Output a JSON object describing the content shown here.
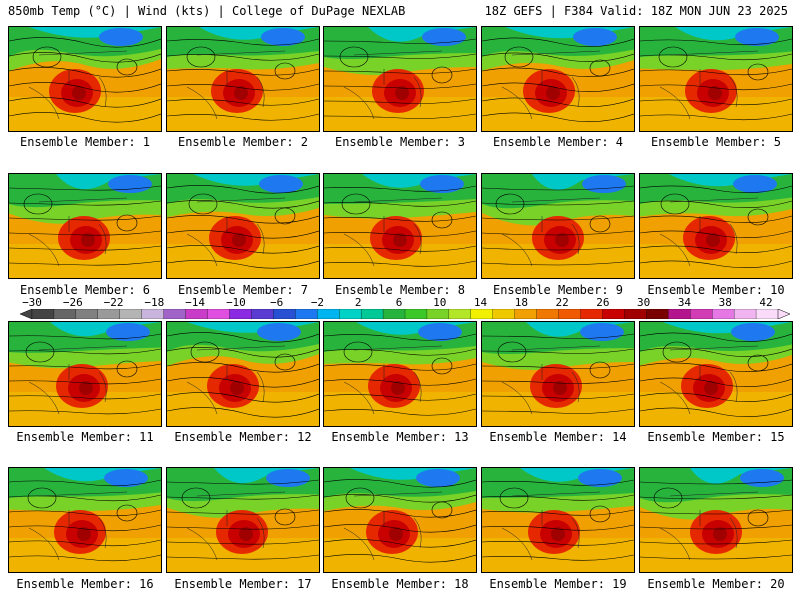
{
  "header": {
    "left": "850mb Temp (°C) | Wind (kts) | College of DuPage NEXLAB",
    "right": "18Z GEFS | F384 Valid: 18Z MON JUN 23 2025"
  },
  "members": [
    "Ensemble Member: 1",
    "Ensemble Member: 2",
    "Ensemble Member: 3",
    "Ensemble Member: 4",
    "Ensemble Member: 5",
    "Ensemble Member: 6",
    "Ensemble Member: 7",
    "Ensemble Member: 8",
    "Ensemble Member: 9",
    "Ensemble Member: 10",
    "Ensemble Member: 11",
    "Ensemble Member: 12",
    "Ensemble Member: 13",
    "Ensemble Member: 14",
    "Ensemble Member: 15",
    "Ensemble Member: 16",
    "Ensemble Member: 17",
    "Ensemble Member: 18",
    "Ensemble Member: 19",
    "Ensemble Member: 20"
  ],
  "colorbar": {
    "labels": [
      "−30",
      "−26",
      "−22",
      "−18",
      "−14",
      "−10",
      "−6",
      "−2",
      "2",
      "6",
      "10",
      "14",
      "18",
      "22",
      "26",
      "30",
      "34",
      "38",
      "42"
    ],
    "colors": [
      "#444444",
      "#666666",
      "#808080",
      "#9a9a9a",
      "#b4b4b4",
      "#c8b4dc",
      "#a064c8",
      "#c83cc8",
      "#e050e0",
      "#8a2be2",
      "#5a3cd2",
      "#2850d2",
      "#1e78f0",
      "#00b4f0",
      "#00d2c8",
      "#00c896",
      "#28b43c",
      "#3cc828",
      "#78d228",
      "#b4e628",
      "#f0f000",
      "#f0c800",
      "#f0a000",
      "#f07800",
      "#f05a00",
      "#e62800",
      "#c80000",
      "#a00000",
      "#780000",
      "#b4148c",
      "#d23cb4",
      "#e678e6",
      "#f0b4f0",
      "#fadcfa"
    ]
  }
}
